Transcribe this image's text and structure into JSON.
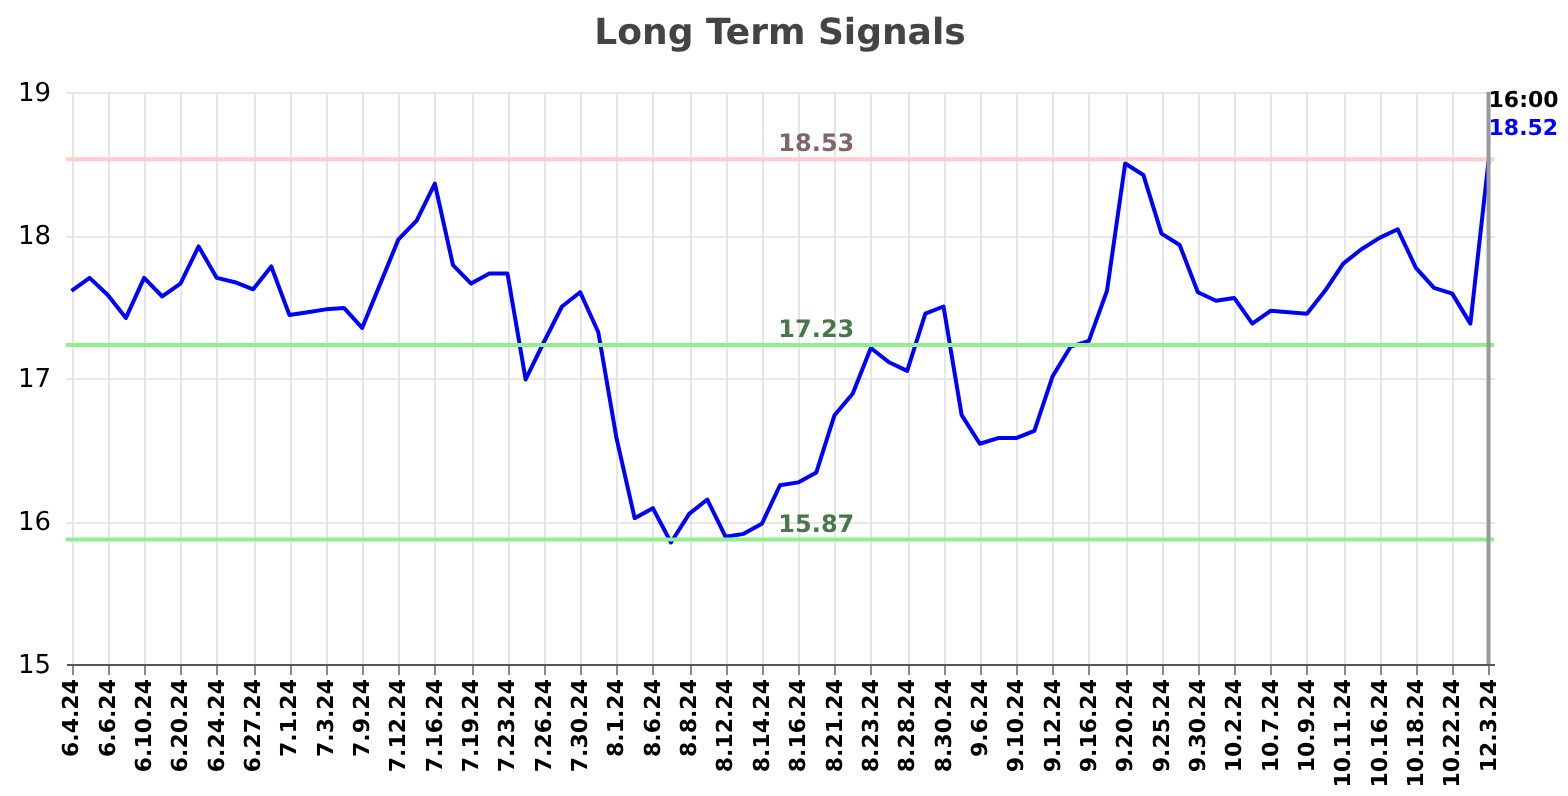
{
  "chart_data": {
    "type": "line",
    "title": "Long Term Signals",
    "categories": [
      "6.4.24",
      null,
      "6.6.24",
      null,
      "6.10.24",
      null,
      "6.20.24",
      null,
      "6.24.24",
      null,
      "6.27.24",
      null,
      "7.1.24",
      null,
      "7.3.24",
      null,
      "7.9.24",
      null,
      "7.12.24",
      null,
      "7.16.24",
      null,
      "7.19.24",
      null,
      "7.23.24",
      null,
      "7.26.24",
      null,
      "7.30.24",
      null,
      "8.1.24",
      null,
      "8.6.24",
      null,
      "8.8.24",
      null,
      "8.12.24",
      null,
      "8.14.24",
      null,
      "8.16.24",
      null,
      "8.21.24",
      null,
      "8.23.24",
      null,
      "8.28.24",
      null,
      "8.30.24",
      null,
      "9.6.24",
      null,
      "9.10.24",
      null,
      "9.12.24",
      null,
      "9.16.24",
      null,
      "9.20.24",
      null,
      "9.25.24",
      null,
      "9.30.24",
      null,
      "10.2.24",
      null,
      "10.7.24",
      null,
      "10.9.24",
      null,
      "10.11.24",
      null,
      "10.16.24",
      null,
      "10.18.24",
      null,
      "10.22.24",
      null,
      "12.3.24"
    ],
    "series": [
      {
        "color": "#0000ff",
        "values": [
          17.61,
          17.7,
          17.58,
          17.42,
          17.7,
          17.57,
          17.66,
          17.92,
          17.7,
          17.67,
          17.62,
          17.78,
          17.44,
          17.46,
          17.48,
          17.49,
          17.35,
          17.66,
          17.97,
          18.1,
          18.36,
          17.79,
          17.66,
          17.73,
          17.73,
          16.99,
          17.25,
          17.5,
          17.6,
          17.32,
          16.58,
          16.02,
          16.09,
          15.85,
          16.05,
          16.15,
          15.89,
          15.91,
          15.98,
          16.25,
          16.27,
          16.34,
          16.74,
          16.89,
          17.21,
          17.11,
          17.05,
          17.45,
          17.5,
          16.74,
          16.54,
          16.58,
          16.58,
          16.63,
          17.01,
          17.22,
          17.26,
          17.61,
          18.5,
          18.42,
          18.01,
          17.93,
          17.6,
          17.54,
          17.56,
          17.38,
          17.47,
          17.46,
          17.45,
          17.61,
          17.8,
          17.9,
          17.98,
          18.04,
          17.77,
          17.63,
          17.59,
          17.38,
          18.52
        ],
        "value_labels": [
          null,
          null,
          null,
          null,
          null,
          null,
          null,
          null,
          null,
          null,
          null,
          null,
          null,
          null,
          null,
          null,
          null,
          null,
          null,
          null,
          null,
          null,
          null,
          null,
          null,
          null,
          null,
          null,
          null,
          null,
          null,
          null,
          null,
          null,
          null,
          null,
          null,
          null,
          null,
          null,
          null,
          null,
          null,
          null,
          null,
          null,
          null,
          null,
          null,
          null,
          null,
          null,
          null,
          null,
          null,
          null,
          null,
          null,
          null,
          null,
          null,
          null,
          null,
          null,
          null,
          null,
          null,
          null,
          null,
          null,
          null,
          null,
          null,
          null,
          null,
          null,
          null,
          null,
          "18.52"
        ]
      }
    ],
    "ylim": [
      15,
      19
    ],
    "yticks": [
      15,
      16,
      17,
      18,
      19
    ],
    "grid": true,
    "ref_lines": [
      {
        "axis": "y",
        "value": 18.53,
        "label": "18.53",
        "color": "#ffcccc"
      },
      {
        "axis": "y",
        "value": 17.23,
        "label": "17.23",
        "color": "#90ee90"
      },
      {
        "axis": "y",
        "value": 15.87,
        "label": "15.87",
        "color": "#90ee90"
      },
      {
        "axis": "x",
        "value": "12.3.24",
        "color": "#999999"
      }
    ],
    "annotations": [
      {
        "text": "16:00",
        "x": "12.3.24",
        "y": 18.52
      }
    ]
  }
}
